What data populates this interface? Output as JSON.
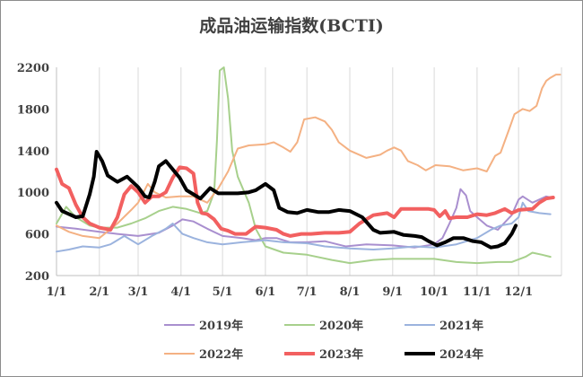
{
  "chart_data": {
    "type": "line",
    "title": "成品油运输指数(BCTI)",
    "xlabel": "",
    "ylabel": "",
    "ylim": [
      200,
      2200
    ],
    "yticks": [
      200,
      600,
      1000,
      1400,
      1800,
      2200
    ],
    "xlim": [
      1,
      366
    ],
    "xticks": [
      {
        "label": "1/1",
        "day": 1
      },
      {
        "label": "2/1",
        "day": 32
      },
      {
        "label": "3/1",
        "day": 60
      },
      {
        "label": "4/1",
        "day": 91
      },
      {
        "label": "5/1",
        "day": 121
      },
      {
        "label": "6/1",
        "day": 152
      },
      {
        "label": "7/1",
        "day": 182
      },
      {
        "label": "8/1",
        "day": 213
      },
      {
        "label": "9/1",
        "day": 244
      },
      {
        "label": "10/1",
        "day": 274
      },
      {
        "label": "11/1",
        "day": 305
      },
      {
        "label": "12/1",
        "day": 335
      }
    ],
    "grid": {
      "vertical": true,
      "horizontal": false
    },
    "legend_position": "bottom",
    "series": [
      {
        "name": "2019年",
        "color": "#a98fcf",
        "width": 2,
        "points": [
          [
            1,
            670
          ],
          [
            15,
            650
          ],
          [
            32,
            620
          ],
          [
            45,
            600
          ],
          [
            60,
            580
          ],
          [
            75,
            610
          ],
          [
            85,
            680
          ],
          [
            92,
            740
          ],
          [
            100,
            720
          ],
          [
            110,
            650
          ],
          [
            121,
            580
          ],
          [
            135,
            560
          ],
          [
            145,
            540
          ],
          [
            152,
            560
          ],
          [
            160,
            560
          ],
          [
            170,
            520
          ],
          [
            182,
            520
          ],
          [
            195,
            530
          ],
          [
            210,
            480
          ],
          [
            225,
            500
          ],
          [
            244,
            490
          ],
          [
            260,
            470
          ],
          [
            274,
            500
          ],
          [
            280,
            560
          ],
          [
            285,
            700
          ],
          [
            290,
            850
          ],
          [
            293,
            1030
          ],
          [
            297,
            970
          ],
          [
            300,
            820
          ],
          [
            305,
            760
          ],
          [
            312,
            680
          ],
          [
            320,
            640
          ],
          [
            330,
            780
          ],
          [
            335,
            930
          ],
          [
            338,
            960
          ],
          [
            345,
            900
          ],
          [
            355,
            960
          ],
          [
            358,
            950
          ]
        ]
      },
      {
        "name": "2020年",
        "color": "#a7d08c",
        "width": 2,
        "points": [
          [
            1,
            700
          ],
          [
            8,
            860
          ],
          [
            15,
            760
          ],
          [
            25,
            680
          ],
          [
            32,
            660
          ],
          [
            45,
            660
          ],
          [
            55,
            700
          ],
          [
            65,
            750
          ],
          [
            75,
            820
          ],
          [
            85,
            860
          ],
          [
            95,
            840
          ],
          [
            105,
            800
          ],
          [
            110,
            820
          ],
          [
            115,
            1000
          ],
          [
            117,
            1500
          ],
          [
            119,
            2170
          ],
          [
            122,
            2200
          ],
          [
            125,
            1900
          ],
          [
            128,
            1400
          ],
          [
            132,
            1150
          ],
          [
            140,
            900
          ],
          [
            145,
            650
          ],
          [
            152,
            480
          ],
          [
            165,
            420
          ],
          [
            182,
            400
          ],
          [
            200,
            350
          ],
          [
            213,
            320
          ],
          [
            230,
            350
          ],
          [
            244,
            360
          ],
          [
            260,
            360
          ],
          [
            274,
            360
          ],
          [
            290,
            330
          ],
          [
            305,
            320
          ],
          [
            320,
            330
          ],
          [
            330,
            330
          ],
          [
            340,
            380
          ],
          [
            345,
            420
          ],
          [
            352,
            400
          ],
          [
            358,
            380
          ]
        ]
      },
      {
        "name": "2021年",
        "color": "#9bb3de",
        "width": 2,
        "points": [
          [
            1,
            430
          ],
          [
            10,
            450
          ],
          [
            20,
            480
          ],
          [
            32,
            470
          ],
          [
            40,
            500
          ],
          [
            50,
            580
          ],
          [
            60,
            500
          ],
          [
            70,
            580
          ],
          [
            80,
            650
          ],
          [
            85,
            700
          ],
          [
            92,
            600
          ],
          [
            100,
            560
          ],
          [
            110,
            520
          ],
          [
            121,
            500
          ],
          [
            135,
            520
          ],
          [
            152,
            540
          ],
          [
            165,
            520
          ],
          [
            182,
            510
          ],
          [
            195,
            480
          ],
          [
            213,
            460
          ],
          [
            230,
            450
          ],
          [
            244,
            460
          ],
          [
            260,
            480
          ],
          [
            274,
            470
          ],
          [
            290,
            500
          ],
          [
            305,
            560
          ],
          [
            315,
            640
          ],
          [
            322,
            680
          ],
          [
            330,
            700
          ],
          [
            335,
            760
          ],
          [
            338,
            900
          ],
          [
            342,
            820
          ],
          [
            350,
            800
          ],
          [
            358,
            790
          ]
        ]
      },
      {
        "name": "2022年",
        "color": "#f4b183",
        "width": 2,
        "points": [
          [
            1,
            680
          ],
          [
            10,
            620
          ],
          [
            20,
            580
          ],
          [
            32,
            560
          ],
          [
            45,
            700
          ],
          [
            55,
            830
          ],
          [
            60,
            900
          ],
          [
            67,
            1080
          ],
          [
            72,
            1000
          ],
          [
            80,
            950
          ],
          [
            90,
            960
          ],
          [
            100,
            960
          ],
          [
            110,
            900
          ],
          [
            118,
            1040
          ],
          [
            125,
            1200
          ],
          [
            132,
            1420
          ],
          [
            140,
            1450
          ],
          [
            152,
            1460
          ],
          [
            158,
            1480
          ],
          [
            165,
            1430
          ],
          [
            170,
            1390
          ],
          [
            175,
            1480
          ],
          [
            180,
            1700
          ],
          [
            188,
            1720
          ],
          [
            195,
            1680
          ],
          [
            200,
            1600
          ],
          [
            205,
            1480
          ],
          [
            213,
            1400
          ],
          [
            225,
            1330
          ],
          [
            235,
            1360
          ],
          [
            240,
            1400
          ],
          [
            245,
            1430
          ],
          [
            250,
            1400
          ],
          [
            255,
            1300
          ],
          [
            262,
            1260
          ],
          [
            268,
            1210
          ],
          [
            275,
            1260
          ],
          [
            285,
            1250
          ],
          [
            295,
            1210
          ],
          [
            305,
            1230
          ],
          [
            312,
            1200
          ],
          [
            318,
            1350
          ],
          [
            322,
            1380
          ],
          [
            328,
            1600
          ],
          [
            332,
            1750
          ],
          [
            338,
            1800
          ],
          [
            343,
            1780
          ],
          [
            348,
            1830
          ],
          [
            352,
            2000
          ],
          [
            355,
            2070
          ],
          [
            358,
            2100
          ],
          [
            362,
            2130
          ],
          [
            365,
            2130
          ]
        ]
      },
      {
        "name": "2023年",
        "color": "#f26060",
        "width": 4,
        "points": [
          [
            1,
            1220
          ],
          [
            5,
            1080
          ],
          [
            10,
            1040
          ],
          [
            15,
            880
          ],
          [
            20,
            760
          ],
          [
            25,
            700
          ],
          [
            32,
            660
          ],
          [
            40,
            640
          ],
          [
            45,
            760
          ],
          [
            50,
            980
          ],
          [
            55,
            1060
          ],
          [
            60,
            1000
          ],
          [
            65,
            900
          ],
          [
            70,
            960
          ],
          [
            75,
            960
          ],
          [
            80,
            1000
          ],
          [
            85,
            1140
          ],
          [
            90,
            1240
          ],
          [
            95,
            1230
          ],
          [
            100,
            1180
          ],
          [
            103,
            900
          ],
          [
            106,
            800
          ],
          [
            110,
            790
          ],
          [
            115,
            740
          ],
          [
            120,
            650
          ],
          [
            125,
            630
          ],
          [
            130,
            600
          ],
          [
            138,
            600
          ],
          [
            145,
            670
          ],
          [
            152,
            660
          ],
          [
            160,
            640
          ],
          [
            165,
            600
          ],
          [
            170,
            580
          ],
          [
            178,
            600
          ],
          [
            185,
            600
          ],
          [
            195,
            610
          ],
          [
            205,
            610
          ],
          [
            213,
            620
          ],
          [
            220,
            700
          ],
          [
            230,
            780
          ],
          [
            240,
            800
          ],
          [
            245,
            760
          ],
          [
            250,
            840
          ],
          [
            260,
            840
          ],
          [
            270,
            840
          ],
          [
            274,
            830
          ],
          [
            278,
            770
          ],
          [
            282,
            820
          ],
          [
            285,
            750
          ],
          [
            290,
            760
          ],
          [
            298,
            760
          ],
          [
            305,
            790
          ],
          [
            312,
            780
          ],
          [
            318,
            800
          ],
          [
            325,
            840
          ],
          [
            330,
            800
          ],
          [
            335,
            830
          ],
          [
            345,
            840
          ],
          [
            350,
            900
          ],
          [
            355,
            940
          ],
          [
            360,
            950
          ]
        ]
      },
      {
        "name": "2024年",
        "color": "#000000",
        "width": 4,
        "points": [
          [
            1,
            900
          ],
          [
            5,
            820
          ],
          [
            10,
            790
          ],
          [
            15,
            760
          ],
          [
            20,
            770
          ],
          [
            25,
            980
          ],
          [
            28,
            1150
          ],
          [
            30,
            1390
          ],
          [
            34,
            1300
          ],
          [
            38,
            1160
          ],
          [
            45,
            1100
          ],
          [
            52,
            1150
          ],
          [
            60,
            1050
          ],
          [
            65,
            960
          ],
          [
            68,
            950
          ],
          [
            72,
            1100
          ],
          [
            75,
            1250
          ],
          [
            80,
            1300
          ],
          [
            85,
            1220
          ],
          [
            90,
            1140
          ],
          [
            95,
            1020
          ],
          [
            100,
            980
          ],
          [
            105,
            940
          ],
          [
            112,
            1040
          ],
          [
            118,
            990
          ],
          [
            125,
            990
          ],
          [
            132,
            990
          ],
          [
            140,
            1000
          ],
          [
            145,
            1020
          ],
          [
            152,
            1080
          ],
          [
            158,
            1020
          ],
          [
            162,
            850
          ],
          [
            168,
            810
          ],
          [
            175,
            800
          ],
          [
            182,
            830
          ],
          [
            190,
            810
          ],
          [
            198,
            810
          ],
          [
            205,
            830
          ],
          [
            213,
            820
          ],
          [
            222,
            760
          ],
          [
            230,
            640
          ],
          [
            235,
            610
          ],
          [
            245,
            620
          ],
          [
            252,
            590
          ],
          [
            260,
            580
          ],
          [
            265,
            570
          ],
          [
            270,
            530
          ],
          [
            276,
            490
          ],
          [
            282,
            520
          ],
          [
            288,
            560
          ],
          [
            295,
            560
          ],
          [
            302,
            530
          ],
          [
            308,
            520
          ],
          [
            315,
            470
          ],
          [
            320,
            480
          ],
          [
            325,
            510
          ],
          [
            330,
            600
          ],
          [
            333,
            680
          ]
        ]
      }
    ]
  }
}
